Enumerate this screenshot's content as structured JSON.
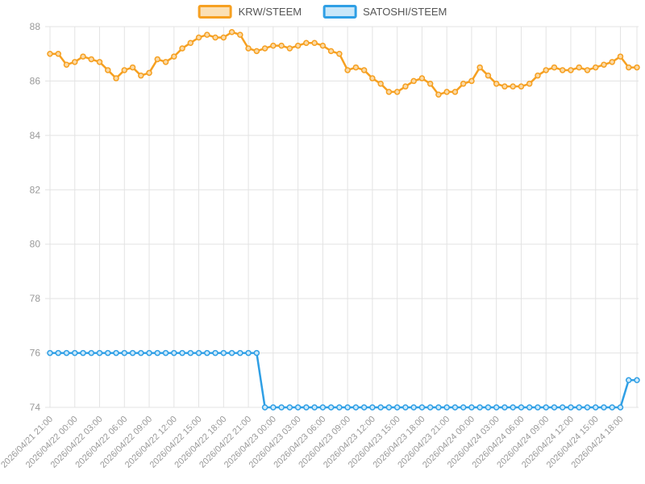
{
  "chart_data": {
    "type": "line",
    "legend_position": "top",
    "grid": true,
    "grid_color": "#E3E3E3",
    "tick_color": "#999999",
    "ylim": [
      74,
      88
    ],
    "y_ticks": [
      74,
      76,
      78,
      80,
      82,
      84,
      86,
      88
    ],
    "points_per_label": 3,
    "x_tick_labels": [
      "2026/04/21 21:00",
      "2026/04/22 00:00",
      "2026/04/22 03:00",
      "2026/04/22 06:00",
      "2026/04/22 09:00",
      "2026/04/22 12:00",
      "2026/04/22 15:00",
      "2026/04/22 18:00",
      "2026/04/22 21:00",
      "2026/04/23 00:00",
      "2026/04/23 03:00",
      "2026/04/23 06:00",
      "2026/04/23 09:00",
      "2026/04/23 12:00",
      "2026/04/23 15:00",
      "2026/04/23 18:00",
      "2026/04/23 21:00",
      "2026/04/24 00:00",
      "2026/04/24 03:00",
      "2026/04/24 06:00",
      "2026/04/24 09:00",
      "2026/04/24 12:00",
      "2026/04/24 15:00",
      "2026/04/24 18:00"
    ],
    "series": [
      {
        "name": "KRW/STEEM",
        "color": "#F6A021",
        "point_fill": "#FBD9A4",
        "swatch_fill": "#FBE0B5",
        "values": [
          87.0,
          87.0,
          86.6,
          86.7,
          86.9,
          86.8,
          86.7,
          86.4,
          86.1,
          86.4,
          86.5,
          86.2,
          86.3,
          86.8,
          86.7,
          86.9,
          87.2,
          87.4,
          87.6,
          87.7,
          87.6,
          87.6,
          87.8,
          87.7,
          87.2,
          87.1,
          87.2,
          87.3,
          87.3,
          87.2,
          87.3,
          87.4,
          87.4,
          87.3,
          87.1,
          87.0,
          86.4,
          86.5,
          86.4,
          86.1,
          85.9,
          85.6,
          85.6,
          85.8,
          86.0,
          86.1,
          85.9,
          85.5,
          85.6,
          85.6,
          85.9,
          86.0,
          86.5,
          86.2,
          85.9,
          85.8,
          85.8,
          85.8,
          85.9,
          86.2,
          86.4,
          86.5,
          86.4,
          86.4,
          86.5,
          86.4,
          86.5,
          86.6,
          86.7,
          86.9,
          86.5,
          86.5
        ]
      },
      {
        "name": "SATOSHI/STEEM",
        "color": "#2F9FE5",
        "point_fill": "#CDE9FA",
        "swatch_fill": "#C9E7F9",
        "values": [
          76,
          76,
          76,
          76,
          76,
          76,
          76,
          76,
          76,
          76,
          76,
          76,
          76,
          76,
          76,
          76,
          76,
          76,
          76,
          76,
          76,
          76,
          76,
          76,
          76,
          76,
          74,
          74,
          74,
          74,
          74,
          74,
          74,
          74,
          74,
          74,
          74,
          74,
          74,
          74,
          74,
          74,
          74,
          74,
          74,
          74,
          74,
          74,
          74,
          74,
          74,
          74,
          74,
          74,
          74,
          74,
          74,
          74,
          74,
          74,
          74,
          74,
          74,
          74,
          74,
          74,
          74,
          74,
          74,
          74,
          75,
          75
        ]
      }
    ]
  }
}
